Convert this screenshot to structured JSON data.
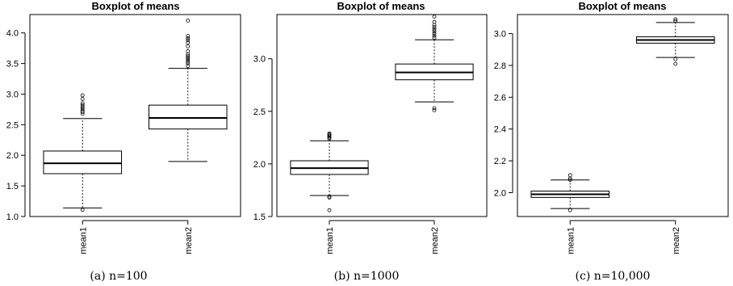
{
  "chart_data": [
    {
      "type": "boxplot",
      "title": "Boxplot of means",
      "caption": "(a) n=100",
      "categories": [
        "mean1",
        "mean2"
      ],
      "ylim": [
        1.0,
        4.3
      ],
      "yticks": [
        1.0,
        1.5,
        2.0,
        2.5,
        3.0,
        3.5,
        4.0
      ],
      "ytick_labels": [
        "1.0",
        "1.5",
        "2.0",
        "2.5",
        "3.0",
        "3.5",
        "4.0"
      ],
      "grid": false,
      "boxes": [
        {
          "name": "mean1",
          "whisker_low": 1.14,
          "q1": 1.7,
          "median": 1.87,
          "q3": 2.07,
          "whisker_high": 2.6,
          "outliers": [
            1.11,
            2.68,
            2.71,
            2.73,
            2.76,
            2.79,
            2.82,
            2.85,
            2.92,
            2.98
          ]
        },
        {
          "name": "mean2",
          "whisker_low": 1.9,
          "q1": 2.43,
          "median": 2.61,
          "q3": 2.82,
          "whisker_high": 3.42,
          "outliers": [
            3.46,
            3.5,
            3.53,
            3.56,
            3.59,
            3.62,
            3.65,
            3.7,
            3.78,
            3.84,
            3.88,
            3.91,
            3.95,
            4.2
          ]
        }
      ]
    },
    {
      "type": "boxplot",
      "title": "Boxplot of means",
      "caption": "(b) n=1000",
      "categories": [
        "mean1",
        "mean2"
      ],
      "ylim": [
        1.5,
        3.42
      ],
      "yticks": [
        1.5,
        2.0,
        2.5,
        3.0
      ],
      "ytick_labels": [
        "1.5",
        "2.0",
        "2.5",
        "3.0"
      ],
      "grid": false,
      "boxes": [
        {
          "name": "mean1",
          "whisker_low": 1.7,
          "q1": 1.9,
          "median": 1.96,
          "q3": 2.03,
          "whisker_high": 2.22,
          "outliers": [
            1.56,
            1.68,
            1.69,
            2.24,
            2.25,
            2.26,
            2.27,
            2.28,
            2.29
          ]
        },
        {
          "name": "mean2",
          "whisker_low": 2.59,
          "q1": 2.8,
          "median": 2.87,
          "q3": 2.95,
          "whisker_high": 3.18,
          "outliers": [
            2.51,
            2.53,
            3.2,
            3.22,
            3.24,
            3.26,
            3.28,
            3.3,
            3.32,
            3.35,
            3.4
          ]
        }
      ]
    },
    {
      "type": "boxplot",
      "title": "Boxplot of means",
      "caption": "(c) n=10,000",
      "categories": [
        "mean1",
        "mean2"
      ],
      "ylim": [
        1.85,
        3.12
      ],
      "yticks": [
        2.0,
        2.2,
        2.4,
        2.6,
        2.8,
        3.0
      ],
      "ytick_labels": [
        "2.0",
        "2.2",
        "2.4",
        "2.6",
        "2.8",
        "3.0"
      ],
      "grid": false,
      "boxes": [
        {
          "name": "mean1",
          "whisker_low": 1.9,
          "q1": 1.97,
          "median": 1.99,
          "q3": 2.01,
          "whisker_high": 2.08,
          "outliers": [
            1.89,
            2.08,
            2.09,
            2.11
          ]
        },
        {
          "name": "mean2",
          "whisker_low": 2.85,
          "q1": 2.94,
          "median": 2.96,
          "q3": 2.98,
          "whisker_high": 3.07,
          "outliers": [
            2.81,
            2.84,
            3.08,
            3.09
          ]
        }
      ]
    }
  ]
}
